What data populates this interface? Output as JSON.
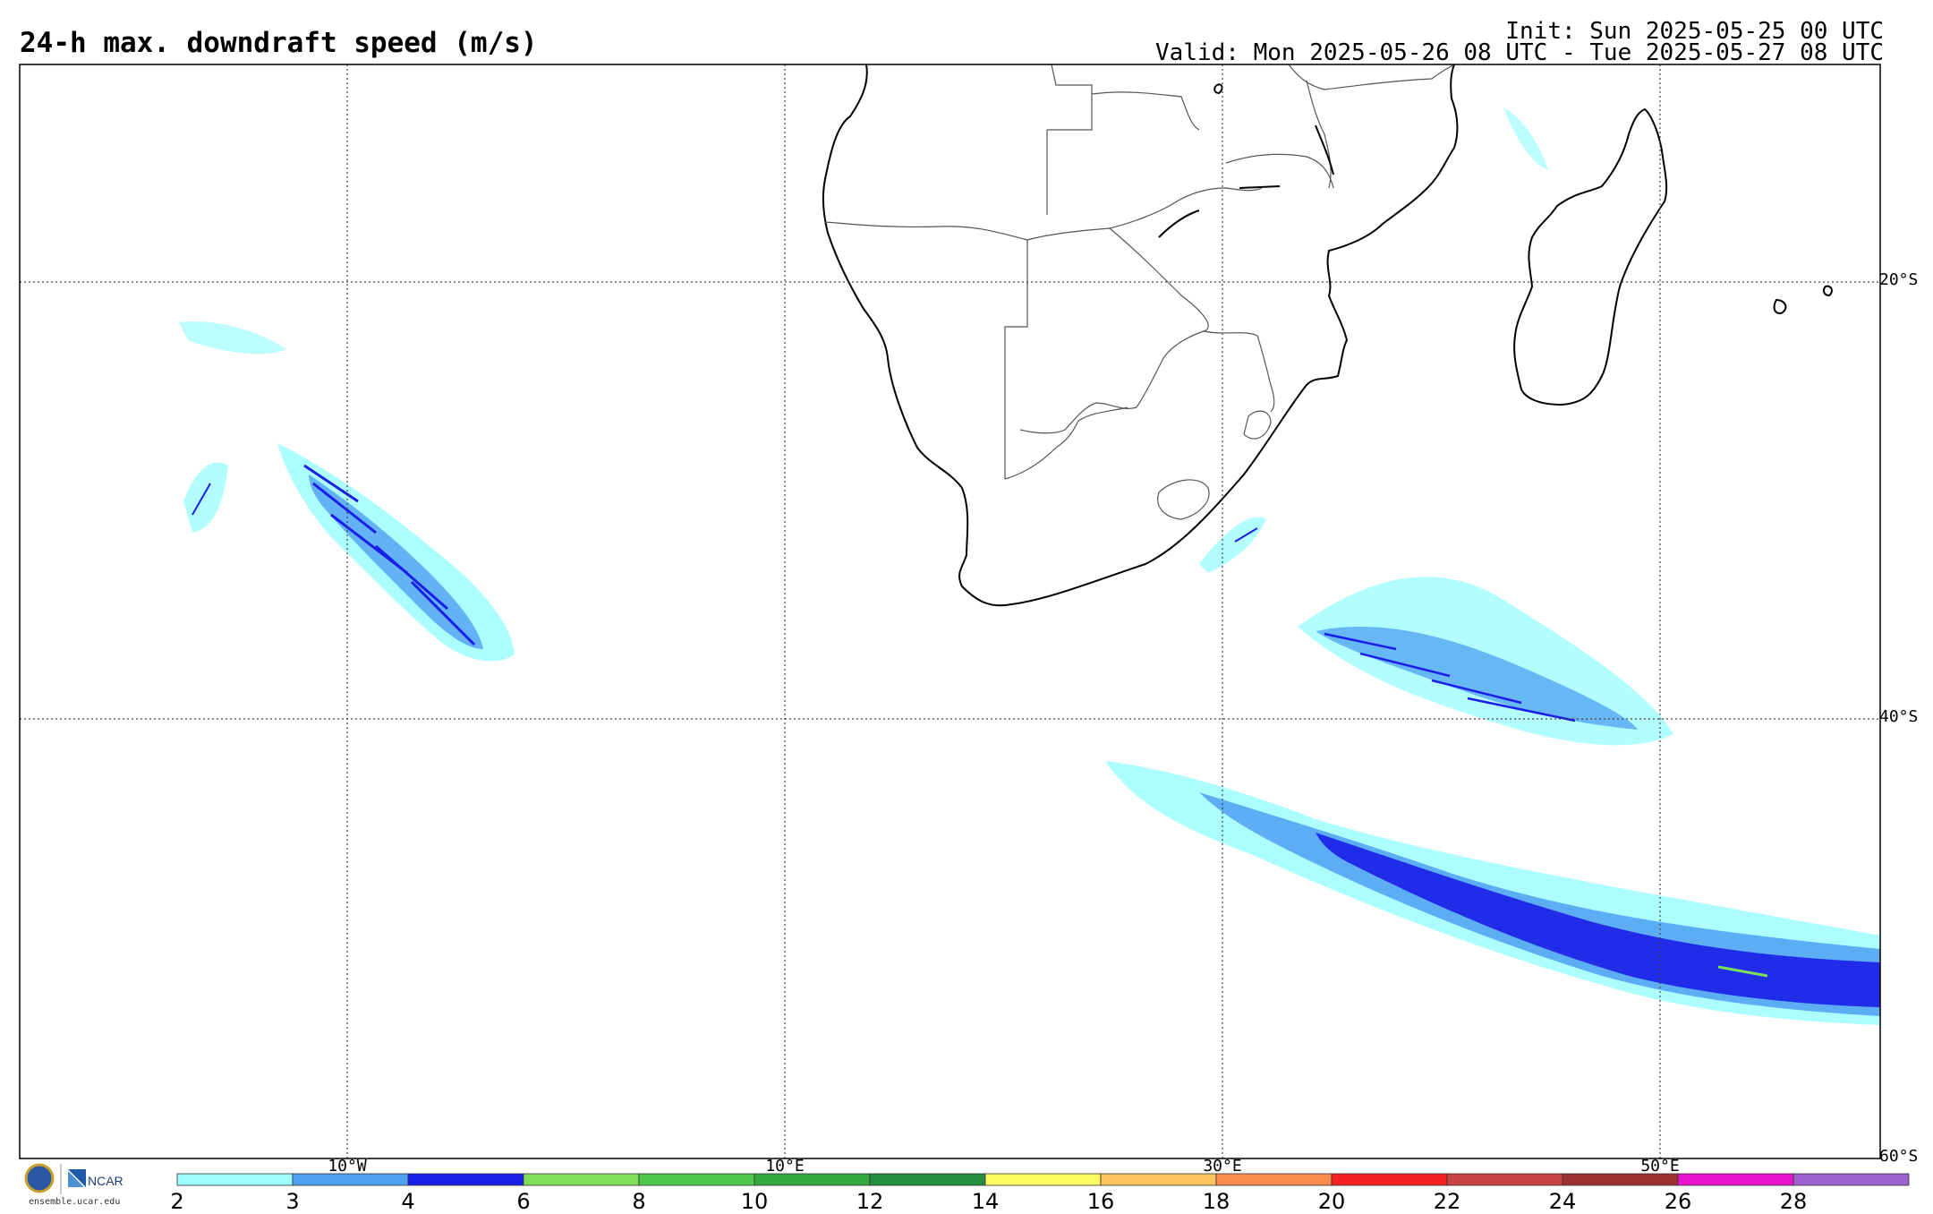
{
  "header": {
    "title": "24-h max. downdraft speed (m/s)",
    "init": "Init: Sun 2025-05-25 00 UTC",
    "valid": "Valid: Mon 2025-05-26 08 UTC - Tue 2025-05-27 08 UTC"
  },
  "map": {
    "lat_labels": [
      "20°S",
      "40°S",
      "60°S"
    ],
    "lon_labels": [
      "10°W",
      "10°E",
      "30°E",
      "50°E"
    ]
  },
  "colorbar": {
    "ticks": [
      "2",
      "3",
      "4",
      "6",
      "8",
      "10",
      "12",
      "14",
      "16",
      "18",
      "20",
      "22",
      "24",
      "26",
      "28"
    ],
    "colors": [
      "#9ffeff",
      "#4f9ff2",
      "#1b1ee8",
      "#7ee059",
      "#4fc94a",
      "#34a83c",
      "#248f3f",
      "#fdfb5f",
      "#fcc35f",
      "#fb8a4f",
      "#f32222",
      "#c84343",
      "#9d3030",
      "#ea12d1",
      "#9c61cc"
    ]
  },
  "credits": {
    "logo_text": "NCAR",
    "url": "ensemble.ucar.edu"
  }
}
